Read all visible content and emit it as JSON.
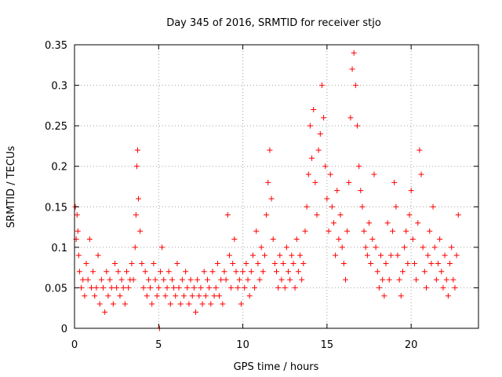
{
  "chart_data": {
    "type": "scatter",
    "title": "Day 345 of 2016, SRMTID for receiver stjo",
    "xlabel": "GPS time / hours",
    "ylabel": "SRMTID / TECUs",
    "xlim": [
      0,
      24
    ],
    "ylim": [
      0,
      0.35
    ],
    "x_ticks": [
      0,
      5,
      10,
      15,
      20
    ],
    "x_tick_labels": [
      "0",
      "5",
      "10",
      "15",
      "20"
    ],
    "y_ticks": [
      0,
      0.05,
      0.1,
      0.15,
      0.2,
      0.25,
      0.3,
      0.35
    ],
    "y_tick_labels": [
      "0",
      "0.05",
      "0.1",
      "0.15",
      "0.2",
      "0.25",
      "0.3",
      "0.35"
    ],
    "grid": true,
    "marker": "+",
    "color": "#ff0000",
    "series": [
      {
        "name": "SRMTID",
        "points": [
          [
            0.05,
            0.15
          ],
          [
            0.1,
            0.11
          ],
          [
            0.15,
            0.14
          ],
          [
            0.2,
            0.12
          ],
          [
            0.25,
            0.09
          ],
          [
            0.3,
            0.07
          ],
          [
            0.4,
            0.05
          ],
          [
            0.5,
            0.06
          ],
          [
            0.6,
            0.04
          ],
          [
            0.7,
            0.08
          ],
          [
            0.8,
            0.06
          ],
          [
            0.9,
            0.11
          ],
          [
            1.0,
            0.05
          ],
          [
            1.1,
            0.07
          ],
          [
            1.2,
            0.04
          ],
          [
            1.3,
            0.05
          ],
          [
            1.4,
            0.09
          ],
          [
            1.5,
            0.03
          ],
          [
            1.6,
            0.06
          ],
          [
            1.7,
            0.05
          ],
          [
            1.8,
            0.02
          ],
          [
            1.9,
            0.07
          ],
          [
            2.0,
            0.04
          ],
          [
            2.1,
            0.06
          ],
          [
            2.2,
            0.05
          ],
          [
            2.3,
            0.03
          ],
          [
            2.4,
            0.08
          ],
          [
            2.5,
            0.05
          ],
          [
            2.6,
            0.07
          ],
          [
            2.7,
            0.04
          ],
          [
            2.8,
            0.06
          ],
          [
            2.9,
            0.05
          ],
          [
            3.0,
            0.03
          ],
          [
            3.1,
            0.07
          ],
          [
            3.2,
            0.05
          ],
          [
            3.3,
            0.06
          ],
          [
            3.4,
            0.08
          ],
          [
            3.5,
            0.06
          ],
          [
            3.6,
            0.1
          ],
          [
            3.65,
            0.14
          ],
          [
            3.7,
            0.2
          ],
          [
            3.75,
            0.22
          ],
          [
            3.8,
            0.16
          ],
          [
            3.9,
            0.12
          ],
          [
            4.0,
            0.08
          ],
          [
            4.1,
            0.05
          ],
          [
            4.2,
            0.07
          ],
          [
            4.3,
            0.04
          ],
          [
            4.4,
            0.06
          ],
          [
            4.5,
            0.05
          ],
          [
            4.6,
            0.03
          ],
          [
            4.7,
            0.08
          ],
          [
            4.8,
            0.06
          ],
          [
            4.9,
            0.04
          ],
          [
            5.0,
            0.05
          ],
          [
            5.05,
            0.0
          ],
          [
            5.1,
            0.07
          ],
          [
            5.2,
            0.1
          ],
          [
            5.3,
            0.06
          ],
          [
            5.4,
            0.04
          ],
          [
            5.5,
            0.05
          ],
          [
            5.6,
            0.07
          ],
          [
            5.7,
            0.03
          ],
          [
            5.8,
            0.06
          ],
          [
            5.9,
            0.05
          ],
          [
            6.0,
            0.04
          ],
          [
            6.1,
            0.08
          ],
          [
            6.2,
            0.05
          ],
          [
            6.3,
            0.03
          ],
          [
            6.4,
            0.06
          ],
          [
            6.5,
            0.04
          ],
          [
            6.6,
            0.07
          ],
          [
            6.7,
            0.05
          ],
          [
            6.8,
            0.03
          ],
          [
            6.9,
            0.06
          ],
          [
            7.0,
            0.04
          ],
          [
            7.1,
            0.05
          ],
          [
            7.2,
            0.02
          ],
          [
            7.3,
            0.06
          ],
          [
            7.4,
            0.04
          ],
          [
            7.5,
            0.05
          ],
          [
            7.6,
            0.03
          ],
          [
            7.7,
            0.07
          ],
          [
            7.8,
            0.04
          ],
          [
            7.9,
            0.06
          ],
          [
            8.0,
            0.05
          ],
          [
            8.1,
            0.03
          ],
          [
            8.2,
            0.07
          ],
          [
            8.3,
            0.04
          ],
          [
            8.4,
            0.05
          ],
          [
            8.5,
            0.08
          ],
          [
            8.6,
            0.04
          ],
          [
            8.7,
            0.06
          ],
          [
            8.8,
            0.03
          ],
          [
            8.9,
            0.07
          ],
          [
            9.0,
            0.06
          ],
          [
            9.1,
            0.14
          ],
          [
            9.2,
            0.09
          ],
          [
            9.3,
            0.05
          ],
          [
            9.4,
            0.08
          ],
          [
            9.5,
            0.11
          ],
          [
            9.6,
            0.07
          ],
          [
            9.7,
            0.05
          ],
          [
            9.8,
            0.06
          ],
          [
            9.9,
            0.03
          ],
          [
            10.0,
            0.07
          ],
          [
            10.1,
            0.05
          ],
          [
            10.2,
            0.08
          ],
          [
            10.3,
            0.06
          ],
          [
            10.4,
            0.04
          ],
          [
            10.5,
            0.07
          ],
          [
            10.6,
            0.09
          ],
          [
            10.7,
            0.05
          ],
          [
            10.8,
            0.12
          ],
          [
            10.9,
            0.08
          ],
          [
            11.0,
            0.06
          ],
          [
            11.1,
            0.1
          ],
          [
            11.2,
            0.07
          ],
          [
            11.3,
            0.09
          ],
          [
            11.4,
            0.14
          ],
          [
            11.5,
            0.18
          ],
          [
            11.6,
            0.22
          ],
          [
            11.7,
            0.16
          ],
          [
            11.8,
            0.11
          ],
          [
            11.9,
            0.08
          ],
          [
            12.0,
            0.07
          ],
          [
            12.1,
            0.05
          ],
          [
            12.2,
            0.09
          ],
          [
            12.3,
            0.06
          ],
          [
            12.4,
            0.08
          ],
          [
            12.5,
            0.05
          ],
          [
            12.6,
            0.1
          ],
          [
            12.7,
            0.07
          ],
          [
            12.8,
            0.06
          ],
          [
            12.9,
            0.09
          ],
          [
            13.0,
            0.08
          ],
          [
            13.1,
            0.05
          ],
          [
            13.2,
            0.11
          ],
          [
            13.3,
            0.07
          ],
          [
            13.4,
            0.09
          ],
          [
            13.5,
            0.06
          ],
          [
            13.6,
            0.08
          ],
          [
            13.7,
            0.12
          ],
          [
            13.8,
            0.15
          ],
          [
            13.9,
            0.19
          ],
          [
            14.0,
            0.25
          ],
          [
            14.1,
            0.21
          ],
          [
            14.2,
            0.27
          ],
          [
            14.3,
            0.18
          ],
          [
            14.4,
            0.14
          ],
          [
            14.5,
            0.22
          ],
          [
            14.6,
            0.24
          ],
          [
            14.7,
            0.3
          ],
          [
            14.8,
            0.26
          ],
          [
            14.9,
            0.2
          ],
          [
            15.0,
            0.16
          ],
          [
            15.1,
            0.12
          ],
          [
            15.2,
            0.19
          ],
          [
            15.3,
            0.15
          ],
          [
            15.4,
            0.13
          ],
          [
            15.5,
            0.09
          ],
          [
            15.6,
            0.17
          ],
          [
            15.7,
            0.11
          ],
          [
            15.8,
            0.14
          ],
          [
            15.9,
            0.1
          ],
          [
            16.0,
            0.08
          ],
          [
            16.1,
            0.06
          ],
          [
            16.2,
            0.12
          ],
          [
            16.3,
            0.18
          ],
          [
            16.4,
            0.26
          ],
          [
            16.5,
            0.32
          ],
          [
            16.6,
            0.34
          ],
          [
            16.7,
            0.3
          ],
          [
            16.8,
            0.25
          ],
          [
            16.9,
            0.2
          ],
          [
            17.0,
            0.17
          ],
          [
            17.1,
            0.15
          ],
          [
            17.2,
            0.12
          ],
          [
            17.3,
            0.1
          ],
          [
            17.4,
            0.09
          ],
          [
            17.5,
            0.13
          ],
          [
            17.6,
            0.08
          ],
          [
            17.7,
            0.11
          ],
          [
            17.8,
            0.19
          ],
          [
            17.9,
            0.1
          ],
          [
            18.0,
            0.07
          ],
          [
            18.1,
            0.05
          ],
          [
            18.2,
            0.09
          ],
          [
            18.3,
            0.06
          ],
          [
            18.4,
            0.04
          ],
          [
            18.5,
            0.08
          ],
          [
            18.6,
            0.13
          ],
          [
            18.7,
            0.06
          ],
          [
            18.8,
            0.09
          ],
          [
            18.9,
            0.12
          ],
          [
            19.0,
            0.18
          ],
          [
            19.1,
            0.15
          ],
          [
            19.2,
            0.09
          ],
          [
            19.3,
            0.06
          ],
          [
            19.4,
            0.04
          ],
          [
            19.5,
            0.07
          ],
          [
            19.6,
            0.1
          ],
          [
            19.7,
            0.12
          ],
          [
            19.8,
            0.08
          ],
          [
            19.9,
            0.14
          ],
          [
            20.0,
            0.17
          ],
          [
            20.1,
            0.11
          ],
          [
            20.2,
            0.08
          ],
          [
            20.3,
            0.06
          ],
          [
            20.4,
            0.13
          ],
          [
            20.5,
            0.22
          ],
          [
            20.6,
            0.19
          ],
          [
            20.7,
            0.1
          ],
          [
            20.8,
            0.07
          ],
          [
            20.9,
            0.05
          ],
          [
            21.0,
            0.09
          ],
          [
            21.1,
            0.12
          ],
          [
            21.2,
            0.08
          ],
          [
            21.3,
            0.15
          ],
          [
            21.4,
            0.1
          ],
          [
            21.5,
            0.06
          ],
          [
            21.6,
            0.08
          ],
          [
            21.7,
            0.11
          ],
          [
            21.8,
            0.07
          ],
          [
            21.9,
            0.05
          ],
          [
            22.0,
            0.09
          ],
          [
            22.1,
            0.06
          ],
          [
            22.2,
            0.04
          ],
          [
            22.3,
            0.08
          ],
          [
            22.4,
            0.1
          ],
          [
            22.5,
            0.06
          ],
          [
            22.6,
            0.05
          ],
          [
            22.7,
            0.09
          ],
          [
            22.8,
            0.14
          ]
        ]
      }
    ]
  }
}
